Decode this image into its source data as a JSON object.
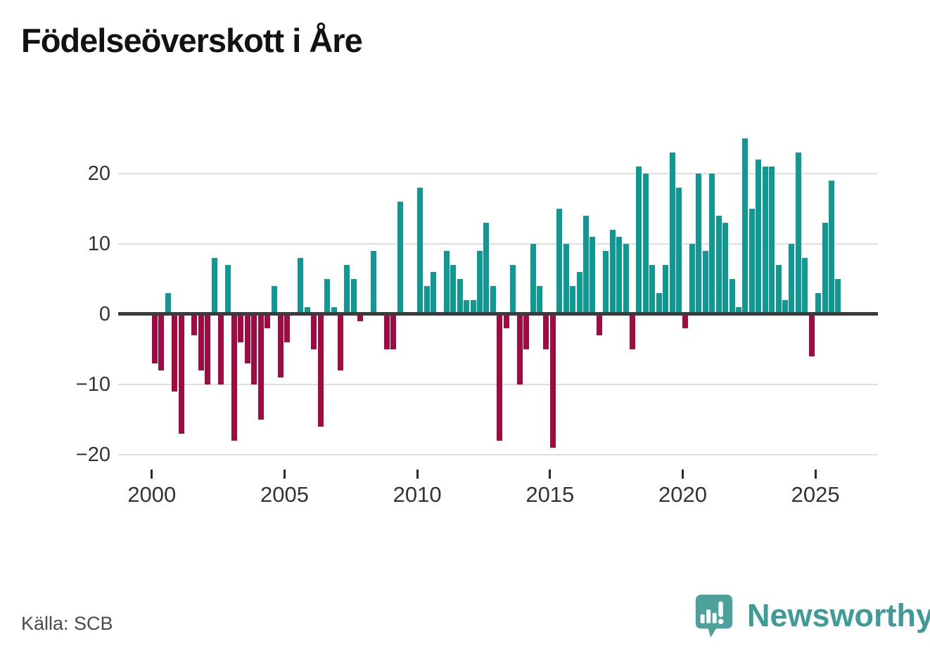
{
  "title": "Födelseöverskott i Åre",
  "source": "Källa: SCB",
  "logo": {
    "brand": "Newsworthy",
    "icon": "speech-bubble-bar-chart-icon",
    "color": "#4ca19d",
    "text_color": "#3f9b97"
  },
  "chart_data": {
    "type": "bar",
    "title": "Födelseöverskott i Åre",
    "frequency": "quarterly",
    "x_start": "2000-Q1",
    "x_end": "2025-Q4",
    "values": [
      -7,
      -8,
      3,
      -11,
      -17,
      0,
      -3,
      -8,
      -10,
      8,
      -10,
      7,
      -18,
      -4,
      -7,
      -10,
      -15,
      -2,
      4,
      -9,
      -4,
      0,
      8,
      1,
      -5,
      -16,
      5,
      1,
      -8,
      7,
      5,
      -1,
      0,
      9,
      0,
      -5,
      -5,
      16,
      0,
      0,
      18,
      4,
      6,
      0,
      9,
      7,
      5,
      2,
      2,
      9,
      13,
      4,
      -18,
      -2,
      7,
      -10,
      -5,
      10,
      4,
      -5,
      -19,
      15,
      10,
      4,
      6,
      14,
      11,
      -3,
      9,
      12,
      11,
      10,
      -5,
      21,
      20,
      7,
      3,
      7,
      23,
      18,
      -2,
      10,
      20,
      9,
      20,
      14,
      13,
      5,
      1,
      25,
      15,
      22,
      21,
      21,
      7,
      2,
      10,
      23,
      8,
      -6,
      3,
      13,
      19,
      5
    ],
    "x_tick_labels": [
      "2000",
      "2005",
      "2010",
      "2015",
      "2020",
      "2025"
    ],
    "y_ticks": [
      20,
      10,
      0,
      -10,
      -20
    ],
    "y_tick_labels": [
      "20",
      "10",
      "0",
      "−10",
      "−20"
    ],
    "ylim": [
      -20.5,
      25
    ],
    "grid": "horizontal",
    "legend": "none",
    "positive_color": "#0e9a93",
    "negative_color": "#a00b41",
    "zero_line_color": "#3b3b3b"
  }
}
